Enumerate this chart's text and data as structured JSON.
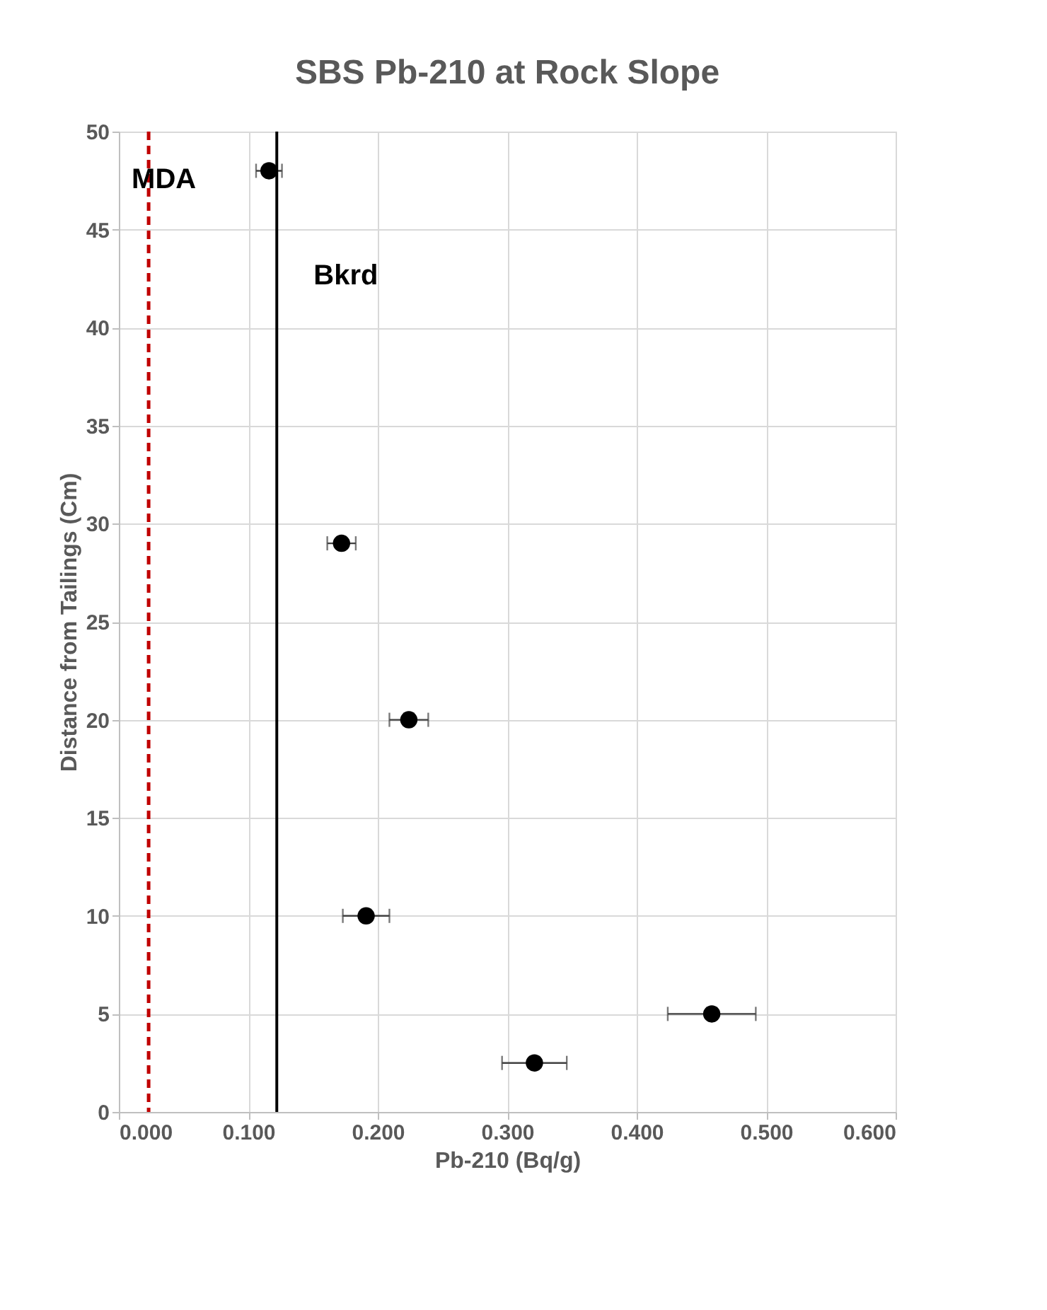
{
  "chart_data": {
    "type": "scatter",
    "title": "SBS  Pb-210 at Rock Slope",
    "xlabel": "Pb-210 (Bq/g)",
    "ylabel": "Distance from Tailings (Cm)",
    "x": [
      0.116,
      0.172,
      0.224,
      0.191,
      0.458,
      0.321
    ],
    "series": [
      {
        "color": "#000000",
        "values": [
          48,
          29,
          20,
          10,
          5,
          2.5
        ],
        "xerrors": [
          0.01,
          0.011,
          0.015,
          0.018,
          0.034,
          0.025
        ]
      }
    ],
    "xlim": [
      0,
      0.6
    ],
    "xticks": [
      {
        "value": 0,
        "label": "0.000"
      },
      {
        "value": 0.1,
        "label": "0.100"
      },
      {
        "value": 0.2,
        "label": "0.200"
      },
      {
        "value": 0.3,
        "label": "0.300"
      },
      {
        "value": 0.4,
        "label": "0.400"
      },
      {
        "value": 0.5,
        "label": "0.500"
      },
      {
        "value": 0.6,
        "label": "0.600"
      }
    ],
    "ylim": [
      0,
      50
    ],
    "yticks": [
      0,
      5,
      10,
      15,
      20,
      25,
      30,
      35,
      40,
      45,
      50
    ],
    "ref_lines": [
      {
        "axis": "x",
        "value": 0.023,
        "label": "MDA",
        "color": "#c00000",
        "line_style": "dashed"
      },
      {
        "axis": "x",
        "value": 0.122,
        "label": "Bkrd",
        "color": "#000000",
        "line_style": "solid"
      }
    ],
    "grid": true,
    "marker": "circle",
    "legend": false
  }
}
